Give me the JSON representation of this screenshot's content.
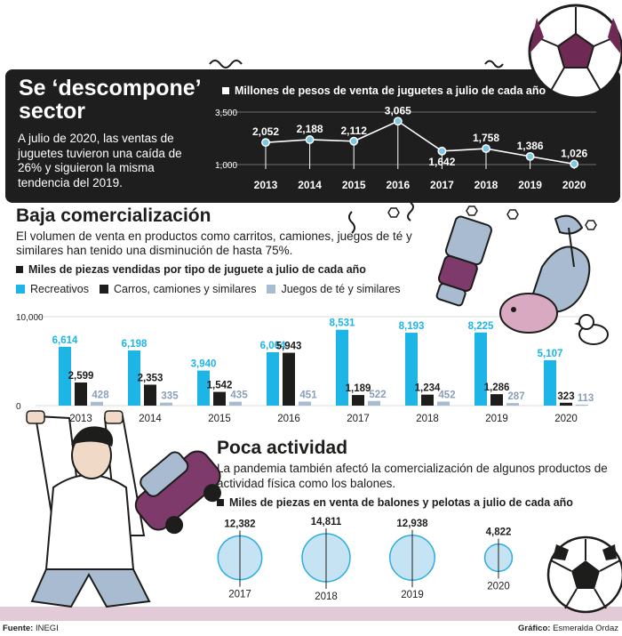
{
  "header": {
    "title": "Se ‘descompone’ sector",
    "intro": "A julio de 2020, las ventas de juguetes tuvieron una caída de 26% y siguieron la misma tendencia del 2019."
  },
  "section2": {
    "title": "Baja comercialización",
    "text": "El volumen de venta en productos como carritos, camiones, juegos de té y similares han tenido una disminución de hasta 75%."
  },
  "section3": {
    "title": "Poca actividad",
    "text": "La pandemia también afectó la comercialización de algunos productos de actividad física como los balones."
  },
  "footer": {
    "source_label": "Fuente:",
    "source_value": "INEGI",
    "credit_label": "Gráfico:",
    "credit_value": "Esmeralda Ordaz"
  },
  "colors": {
    "panel": "#1e1e1e",
    "line": "#ffffff",
    "marker": "#7ac8e3",
    "cyan": "#1cb5e6",
    "black": "#1d1d1b",
    "light": "#a9bbd1",
    "circle_fill": "#c6e3f3",
    "circle_stroke": "#29aee0"
  },
  "chart_data": [
    {
      "type": "line",
      "title": "Millones de pesos de venta de juguetes a julio de cada año",
      "x": [
        "2013",
        "2014",
        "2015",
        "2016",
        "2017",
        "2018",
        "2019",
        "2020"
      ],
      "series": [
        {
          "values": [
            2052,
            2188,
            2112,
            3065,
            1642,
            1758,
            1386,
            1026
          ]
        }
      ],
      "data_labels": [
        "2,052",
        "2,188",
        "2,112",
        "3,065",
        "1,642",
        "1,758",
        "1,386",
        "1,026"
      ],
      "ylim": [
        1000,
        3500
      ],
      "ytick_labels": [
        "3,500",
        "1,000"
      ],
      "ytick_values": [
        3500,
        1000
      ],
      "grid": true
    },
    {
      "type": "bar",
      "title": "Miles de piezas vendidas por tipo de juguete a julio de cada año",
      "categories": [
        "2013",
        "2014",
        "2015",
        "2016",
        "2017",
        "2018",
        "2019",
        "2020"
      ],
      "series": [
        {
          "name": "Recreativos",
          "values": [
            6614,
            6198,
            3940,
            6004,
            8531,
            8193,
            8225,
            5107
          ],
          "labels": [
            "6,614",
            "6,198",
            "3,940",
            "6,004",
            "8,531",
            "8,193",
            "8,225",
            "5,107"
          ]
        },
        {
          "name": "Carros, camiones y similares",
          "values": [
            2599,
            2353,
            1542,
            5943,
            1189,
            1234,
            1286,
            323
          ],
          "labels": [
            "2,599",
            "2,353",
            "1,542",
            "5,943",
            "1,189",
            "1,234",
            "1,286",
            "323"
          ]
        },
        {
          "name": "Juegos de té y similares",
          "values": [
            428,
            335,
            435,
            451,
            522,
            452,
            287,
            113
          ],
          "labels": [
            "428",
            "335",
            "435",
            "451",
            "522",
            "452",
            "287",
            "113"
          ]
        }
      ],
      "ylim": [
        0,
        10000
      ],
      "ytick_labels": [
        "10,000",
        "0"
      ],
      "ytick_values": [
        10000,
        0
      ],
      "grid": true
    },
    {
      "type": "bubble",
      "title": "Miles de piezas en venta de balones y pelotas a julio de cada año",
      "categories": [
        "2017",
        "2018",
        "2019",
        "2020"
      ],
      "values": [
        12382,
        14811,
        12938,
        4822
      ],
      "labels": [
        "12,382",
        "14,811",
        "12,938",
        "4,822"
      ]
    }
  ]
}
